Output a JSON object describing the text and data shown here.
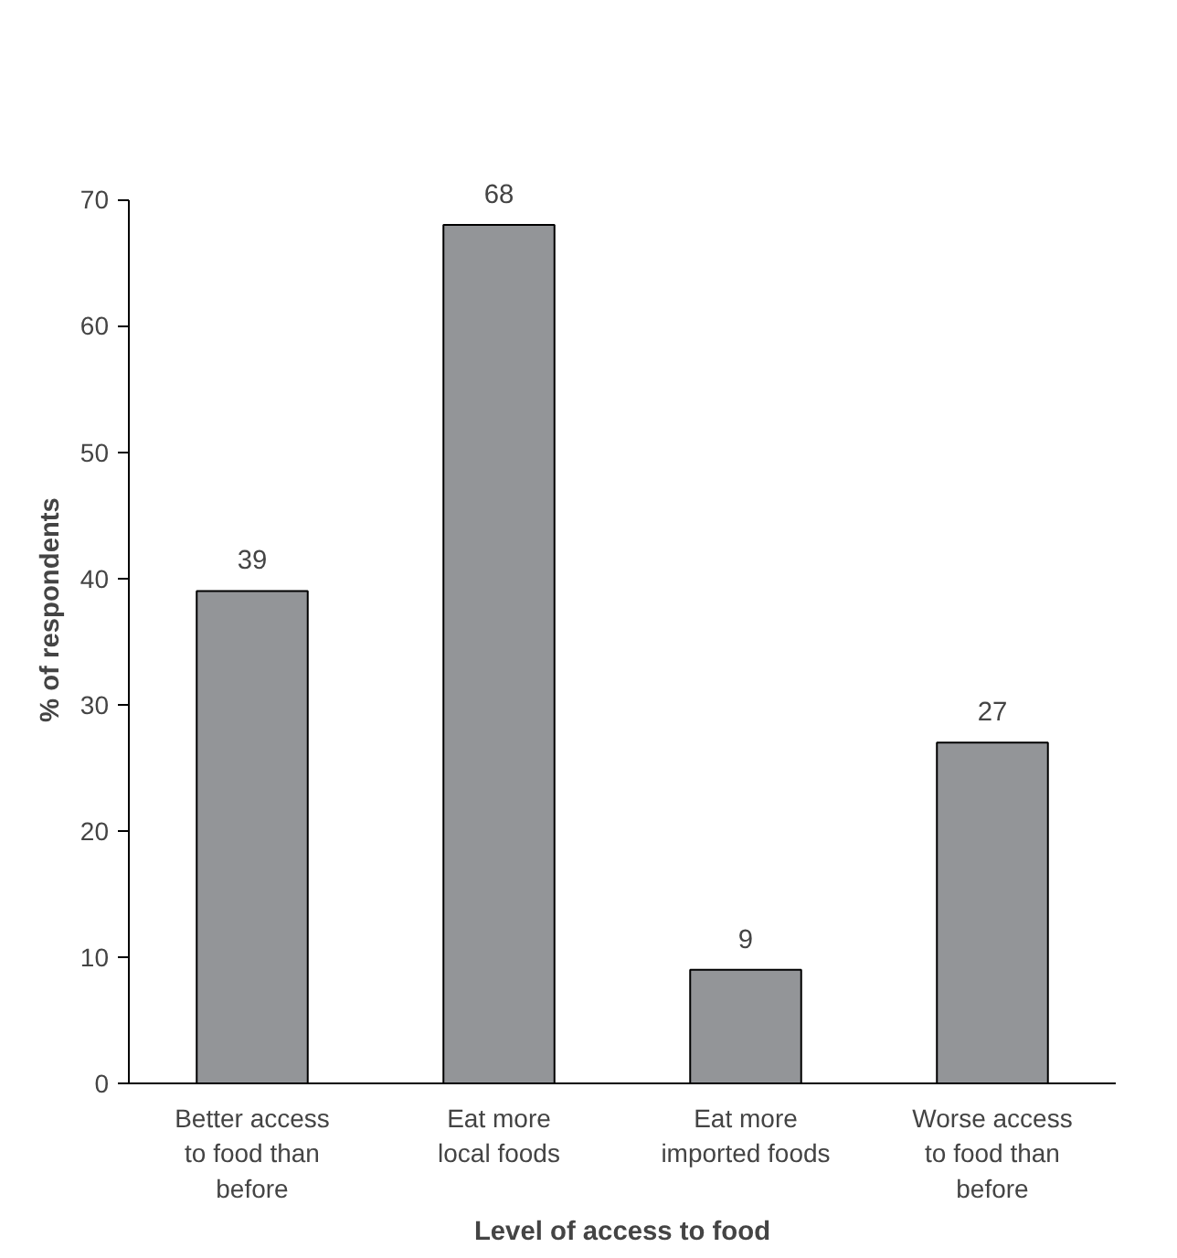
{
  "chart_data": {
    "type": "bar",
    "xlabel": "Level of access to food",
    "ylabel": "% of  respondents",
    "categories": [
      "Better access\nto food than\nbefore",
      "Eat more\nlocal foods",
      "Eat more\nimported foods",
      "Worse access\nto food than\nbefore"
    ],
    "values": [
      39,
      68,
      9,
      27
    ],
    "color": "#939598",
    "ylim": [
      0,
      70
    ],
    "yticks": [
      0,
      10,
      20,
      30,
      40,
      50,
      60,
      70
    ],
    "grid": false,
    "data_labels": true
  }
}
